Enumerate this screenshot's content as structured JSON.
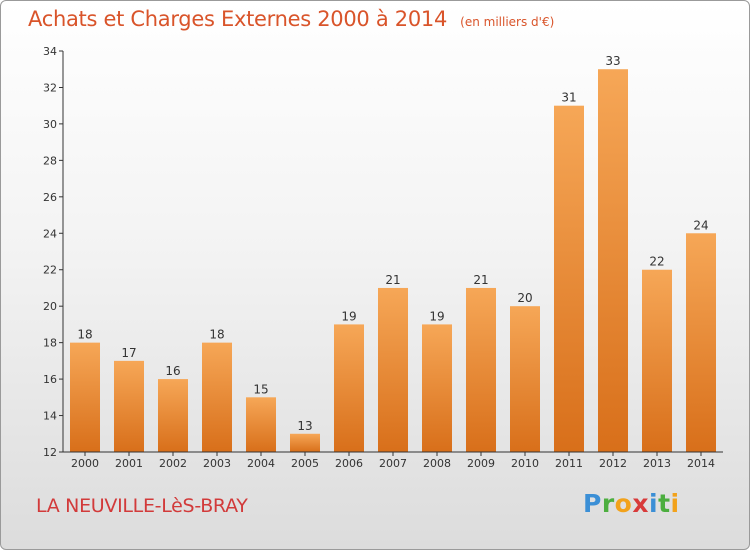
{
  "header": {
    "title": "Achats et Charges Externes 2000 à 2014",
    "unit": "(en milliers d'€)"
  },
  "footer": {
    "commune": "LA NEUVILLE-LèS-BRAY",
    "logo_letters": [
      "P",
      "r",
      "o",
      "x",
      "i",
      "t",
      "i"
    ],
    "logo_colors": [
      "#3b8fd6",
      "#4cae3f",
      "#f2a21b",
      "#d83a3a",
      "#3b8fd6",
      "#4cae3f",
      "#f2a21b"
    ]
  },
  "colors": {
    "bar_top": "#f6a757",
    "bar_bottom": "#d86f1a",
    "title": "#d9542a",
    "axis": "#333333"
  },
  "chart_data": {
    "type": "bar",
    "categories": [
      "2000",
      "2001",
      "2002",
      "2003",
      "2004",
      "2005",
      "2006",
      "2007",
      "2008",
      "2009",
      "2010",
      "2011",
      "2012",
      "2013",
      "2014"
    ],
    "values": [
      18,
      17,
      16,
      18,
      15,
      13,
      19,
      21,
      19,
      21,
      20,
      31,
      33,
      22,
      24
    ],
    "ylim": [
      12,
      34
    ],
    "yticks": [
      12,
      14,
      16,
      18,
      20,
      22,
      24,
      26,
      28,
      30,
      32,
      34
    ],
    "grid": false,
    "data_labels": true
  }
}
